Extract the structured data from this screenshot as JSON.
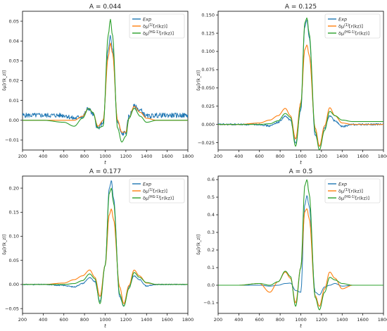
{
  "chart_data": [
    {
      "type": "line",
      "title": "A = 0.044",
      "xlabel": "t",
      "ylabel": "δμ[r(k_z)]",
      "xlim": [
        200,
        1800
      ],
      "ylim": [
        -0.015,
        0.055
      ],
      "xticks": [
        200,
        400,
        600,
        800,
        1000,
        1200,
        1400,
        1600,
        1800
      ],
      "yticks": [
        -0.01,
        0.0,
        0.01,
        0.02,
        0.03,
        0.04,
        0.05
      ],
      "ytick_labels": [
        "−0.01",
        "0.00",
        "0.01",
        "0.02",
        "0.03",
        "0.04",
        "0.05"
      ],
      "legend_position": "top-right",
      "grid": false,
      "series": [
        {
          "name": "Exp",
          "color": "#1f77b4",
          "x": [
            200,
            400,
            600,
            700,
            780,
            840,
            880,
            930,
            980,
            1030,
            1050,
            1070,
            1120,
            1160,
            1200,
            1230,
            1280,
            1340,
            1400,
            1500,
            1600,
            1700,
            1800
          ],
          "y": [
            0.0025,
            0.0025,
            0.0025,
            0.001,
            0.002,
            0.006,
            0.003,
            -0.004,
            -0.001,
            0.035,
            0.042,
            0.036,
            -0.001,
            -0.007,
            -0.006,
            0.002,
            0.007,
            0.005,
            0.002,
            0.0025,
            0.0025,
            0.0025,
            0.0025
          ],
          "noise": 0.0012
        },
        {
          "name": "δμ^{(1)}[r(k_z)]",
          "color": "#ff7f0e",
          "x": [
            200,
            400,
            600,
            700,
            780,
            840,
            880,
            930,
            980,
            1030,
            1050,
            1070,
            1120,
            1160,
            1200,
            1230,
            1280,
            1340,
            1400,
            1500,
            1600,
            1700,
            1800
          ],
          "y": [
            0.0,
            0.0,
            0.0,
            0.0,
            0.002,
            0.006,
            0.004,
            -0.003,
            0.0,
            0.032,
            0.039,
            0.034,
            0.0,
            -0.006,
            -0.006,
            0.001,
            0.007,
            0.004,
            0.001,
            0.0,
            0.0,
            0.0,
            0.0
          ]
        },
        {
          "name": "δμ^{(HG-1)}[r(k_z)]",
          "color": "#2ca02c",
          "x": [
            200,
            400,
            600,
            700,
            780,
            840,
            880,
            930,
            980,
            1030,
            1050,
            1070,
            1120,
            1160,
            1200,
            1230,
            1280,
            1340,
            1400,
            1500,
            1600,
            1700,
            1800
          ],
          "y": [
            0.0,
            0.0,
            -0.001,
            -0.003,
            0.001,
            0.006,
            0.004,
            -0.004,
            -0.003,
            0.043,
            0.051,
            0.043,
            -0.004,
            -0.011,
            -0.008,
            0.001,
            0.006,
            0.002,
            -0.001,
            0.0,
            0.0,
            0.0,
            0.0
          ]
        }
      ]
    },
    {
      "type": "line",
      "title": "A = 0.125",
      "xlabel": "t",
      "ylabel": "δμ[r(k_z)]",
      "xlim": [
        200,
        1800
      ],
      "ylim": [
        -0.035,
        0.155
      ],
      "xticks": [
        200,
        400,
        600,
        800,
        1000,
        1200,
        1400,
        1600,
        1800
      ],
      "yticks": [
        -0.025,
        0.0,
        0.025,
        0.05,
        0.075,
        0.1,
        0.125,
        0.15
      ],
      "ytick_labels": [
        "−0.025",
        "0.000",
        "0.025",
        "0.050",
        "0.075",
        "0.100",
        "0.125",
        "0.150"
      ],
      "legend_position": "top-right",
      "grid": false,
      "series": [
        {
          "name": "Exp",
          "color": "#1f77b4",
          "x": [
            200,
            400,
            600,
            700,
            780,
            850,
            900,
            950,
            1000,
            1040,
            1060,
            1080,
            1140,
            1180,
            1230,
            1280,
            1330,
            1400,
            1500,
            1600,
            1700,
            1800
          ],
          "y": [
            0.0,
            0.0,
            0.0,
            -0.002,
            0.003,
            0.011,
            0.006,
            -0.025,
            0.02,
            0.135,
            0.143,
            0.12,
            -0.015,
            -0.03,
            -0.005,
            0.012,
            0.005,
            -0.003,
            0.0,
            0.0,
            0.0,
            0.0
          ],
          "noise": 0.0012
        },
        {
          "name": "δμ^{(1)}[r(k_z)]",
          "color": "#ff7f0e",
          "x": [
            200,
            400,
            600,
            700,
            780,
            850,
            900,
            950,
            1000,
            1040,
            1060,
            1080,
            1140,
            1180,
            1230,
            1280,
            1330,
            1400,
            1500,
            1600,
            1700,
            1800
          ],
          "y": [
            0.0,
            0.0,
            0.002,
            0.006,
            0.012,
            0.022,
            0.012,
            -0.02,
            0.03,
            0.103,
            0.109,
            0.095,
            -0.005,
            -0.03,
            -0.002,
            0.023,
            0.012,
            0.002,
            0.0,
            0.0,
            0.0,
            0.0
          ]
        },
        {
          "name": "δμ^{(HG-1)}[r(k_z)]",
          "color": "#2ca02c",
          "x": [
            200,
            400,
            600,
            700,
            780,
            850,
            900,
            950,
            1000,
            1040,
            1060,
            1080,
            1140,
            1180,
            1230,
            1280,
            1330,
            1400,
            1500,
            1600,
            1700,
            1800
          ],
          "y": [
            0.0,
            0.0,
            0.0,
            0.001,
            0.005,
            0.015,
            0.01,
            -0.03,
            0.025,
            0.14,
            0.146,
            0.125,
            -0.01,
            -0.035,
            -0.008,
            0.018,
            0.012,
            0.006,
            0.004,
            0.004,
            0.004,
            0.004
          ]
        }
      ]
    },
    {
      "type": "line",
      "title": "A = 0.177",
      "xlabel": "t",
      "ylabel": "δμ[r(k_z)]",
      "xlim": [
        200,
        1800
      ],
      "ylim": [
        -0.06,
        0.225
      ],
      "xticks": [
        200,
        400,
        600,
        800,
        1000,
        1200,
        1400,
        1600,
        1800
      ],
      "yticks": [
        -0.05,
        0.0,
        0.05,
        0.1,
        0.15,
        0.2
      ],
      "ytick_labels": [
        "−0.05",
        "0.00",
        "0.05",
        "0.10",
        "0.15",
        "0.20"
      ],
      "legend_position": "top-right",
      "grid": false,
      "series": [
        {
          "name": "Exp",
          "color": "#1f77b4",
          "x": [
            200,
            400,
            600,
            700,
            780,
            850,
            900,
            950,
            1000,
            1040,
            1060,
            1080,
            1140,
            1180,
            1230,
            1280,
            1330,
            1400,
            1500,
            1600,
            1700,
            1800
          ],
          "y": [
            0.0,
            0.0,
            -0.002,
            -0.005,
            0.002,
            0.014,
            0.006,
            -0.035,
            0.04,
            0.2,
            0.215,
            0.18,
            -0.025,
            -0.045,
            -0.005,
            0.018,
            0.01,
            -0.003,
            0.0,
            0.0,
            0.0,
            0.0
          ],
          "noise": 0.001
        },
        {
          "name": "δμ^{(1)}[r(k_z)]",
          "color": "#ff7f0e",
          "x": [
            200,
            400,
            600,
            700,
            780,
            850,
            900,
            950,
            1000,
            1040,
            1060,
            1080,
            1140,
            1180,
            1230,
            1280,
            1330,
            1400,
            1500,
            1600,
            1700,
            1800
          ],
          "y": [
            0.0,
            0.0,
            0.003,
            0.01,
            0.018,
            0.03,
            0.015,
            -0.025,
            0.04,
            0.145,
            0.157,
            0.135,
            -0.005,
            -0.04,
            -0.002,
            0.03,
            0.018,
            0.003,
            0.0,
            0.0,
            0.0,
            0.0
          ]
        },
        {
          "name": "δμ^{(HG-1)}[r(k_z)]",
          "color": "#2ca02c",
          "x": [
            200,
            400,
            600,
            700,
            780,
            850,
            900,
            950,
            1000,
            1040,
            1060,
            1080,
            1140,
            1180,
            1230,
            1280,
            1330,
            1400,
            1500,
            1600,
            1700,
            1800
          ],
          "y": [
            0.0,
            0.0,
            0.0,
            0.002,
            0.008,
            0.022,
            0.012,
            -0.04,
            0.04,
            0.19,
            0.2,
            0.17,
            -0.02,
            -0.045,
            -0.008,
            0.025,
            0.015,
            0.004,
            0.0,
            0.0,
            0.0,
            0.0
          ]
        }
      ]
    },
    {
      "type": "line",
      "title": "A = 0.5",
      "xlabel": "t",
      "ylabel": "δμ[r(k_z)]",
      "xlim": [
        200,
        1800
      ],
      "ylim": [
        -0.16,
        0.62
      ],
      "xticks": [
        200,
        400,
        600,
        800,
        1000,
        1200,
        1400,
        1600,
        1800
      ],
      "yticks": [
        -0.1,
        0.0,
        0.1,
        0.2,
        0.3,
        0.4,
        0.5,
        0.6
      ],
      "ytick_labels": [
        "−0.1",
        "0.0",
        "0.1",
        "0.2",
        "0.3",
        "0.4",
        "0.5",
        "0.6"
      ],
      "legend_position": "top-right",
      "grid": false,
      "series": [
        {
          "name": "Exp",
          "color": "#1f77b4",
          "x": [
            200,
            400,
            600,
            700,
            780,
            850,
            900,
            950,
            1000,
            1040,
            1060,
            1080,
            1140,
            1180,
            1230,
            1280,
            1330,
            1400,
            1500,
            1600,
            1700,
            1800
          ],
          "y": [
            0.0,
            0.0,
            0.0,
            -0.005,
            0.0,
            0.01,
            0.012,
            -0.03,
            -0.04,
            0.46,
            0.51,
            0.45,
            -0.04,
            -0.055,
            -0.01,
            0.0,
            0.01,
            -0.005,
            0.0,
            0.0,
            0.0,
            0.0
          ]
        },
        {
          "name": "δμ^{(1)}[r(k_z)]",
          "color": "#ff7f0e",
          "x": [
            200,
            400,
            600,
            700,
            780,
            850,
            900,
            950,
            1000,
            1040,
            1060,
            1080,
            1140,
            1180,
            1230,
            1280,
            1330,
            1400,
            1500,
            1600,
            1700,
            1800
          ],
          "y": [
            0.0,
            0.0,
            0.01,
            -0.04,
            0.02,
            0.075,
            0.04,
            -0.1,
            0.1,
            0.42,
            0.435,
            0.38,
            -0.06,
            -0.12,
            -0.02,
            0.075,
            0.04,
            -0.02,
            0.0,
            0.0,
            0.0,
            0.0
          ]
        },
        {
          "name": "δμ^{(HG-1)}[r(k_z)]",
          "color": "#2ca02c",
          "x": [
            200,
            400,
            600,
            700,
            780,
            850,
            900,
            950,
            1000,
            1040,
            1060,
            1080,
            1140,
            1180,
            1230,
            1280,
            1330,
            1400,
            1500,
            1600,
            1700,
            1800
          ],
          "y": [
            0.0,
            0.0,
            0.01,
            0.0,
            0.02,
            0.08,
            0.05,
            -0.12,
            0.1,
            0.57,
            0.6,
            0.52,
            -0.07,
            -0.14,
            -0.04,
            0.045,
            0.03,
            0.01,
            0.0,
            0.0,
            0.0,
            0.0
          ]
        }
      ]
    }
  ]
}
